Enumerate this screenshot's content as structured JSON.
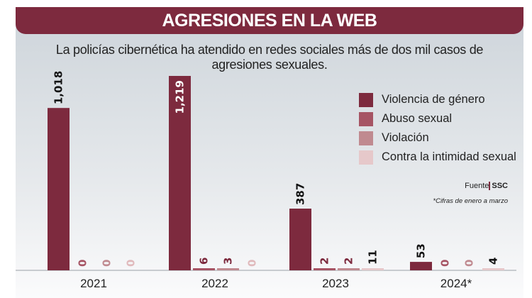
{
  "header": {
    "title": "AGRESIONES EN LA WEB"
  },
  "subtitle": "La policías cibernética ha atendido en redes sociales más de dos mil casos de agresiones sexuales.",
  "source": {
    "label": "Fuente",
    "value": "SSC"
  },
  "note": "*Cifras de enero a marzo",
  "chart_data": {
    "type": "bar",
    "categories": [
      "2021",
      "2022",
      "2023",
      "2024*"
    ],
    "series": [
      {
        "name": "Violencia de género",
        "color": "#7d2a3e",
        "values": [
          1018,
          1219,
          387,
          53
        ],
        "labels": [
          "1,018",
          "1,219",
          "387",
          "53"
        ]
      },
      {
        "name": "Abuso sexual",
        "color": "#a65464",
        "values": [
          0,
          6,
          2,
          0
        ],
        "labels": [
          "0",
          "6",
          "2",
          "0"
        ]
      },
      {
        "name": "Violación",
        "color": "#c08a90",
        "values": [
          0,
          3,
          2,
          0
        ],
        "labels": [
          "0",
          "3",
          "2",
          "0"
        ]
      },
      {
        "name": "Contra la intimidad sexual",
        "color": "#e6c8ca",
        "values": [
          0,
          0,
          11,
          4
        ],
        "labels": [
          "0",
          "0",
          "11",
          "4"
        ]
      }
    ],
    "ylim": [
      0,
      1219
    ],
    "grid": false,
    "legend": "right"
  }
}
